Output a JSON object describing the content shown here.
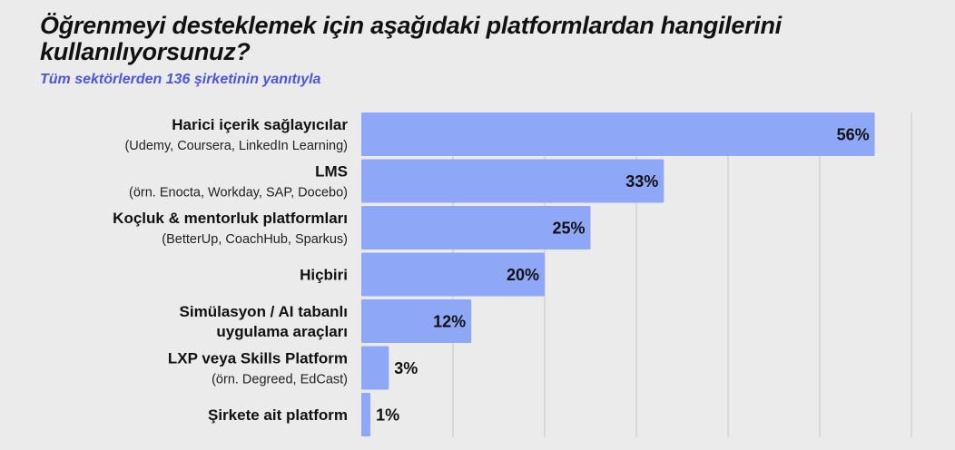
{
  "title": "Öğrenmeyi desteklemek için aşağıdaki platformlardan hangilerini kullanılıyorsunuz?",
  "subtitle": "Tüm sektörlerden 136 şirketinin yanıtıyla",
  "colors": {
    "bar": "#8fa7f7",
    "subtitle": "#4a55e0",
    "grid": "#c4c4c4",
    "background": "#ebebeb"
  },
  "chart_data": {
    "type": "bar",
    "orientation": "horizontal",
    "title": "Öğrenmeyi desteklemek için aşağıdaki platformlardan hangilerini kullanılıyorsunuz?",
    "subtitle": "Tüm sektörlerden 136 şirketinin yanıtıyla",
    "xlabel": "",
    "ylabel": "",
    "xlim": [
      0,
      60
    ],
    "grid": true,
    "unit": "%",
    "categories": [
      {
        "lines": [
          "Harici içerik sağlayıcılar"
        ],
        "sub": "(Udemy, Coursera, LinkedIn Learning)"
      },
      {
        "lines": [
          "LMS"
        ],
        "sub": "(örn. Enocta, Workday, SAP, Docebo)"
      },
      {
        "lines": [
          "Koçluk & mentorluk platformları"
        ],
        "sub": "(BetterUp, CoachHub, Sparkus)"
      },
      {
        "lines": [
          "Hiçbiri"
        ],
        "sub": ""
      },
      {
        "lines": [
          "Simülasyon / AI tabanlı",
          "uygulama araçları"
        ],
        "sub": ""
      },
      {
        "lines": [
          "LXP veya Skills Platform"
        ],
        "sub": "(örn. Degreed, EdCast)"
      },
      {
        "lines": [
          "Şirkete ait platform"
        ],
        "sub": ""
      }
    ],
    "values": [
      56,
      33,
      25,
      20,
      12,
      3,
      1
    ],
    "value_labels": [
      "56%",
      "33%",
      "25%",
      "20%",
      "12%",
      "3%",
      "1%"
    ]
  }
}
